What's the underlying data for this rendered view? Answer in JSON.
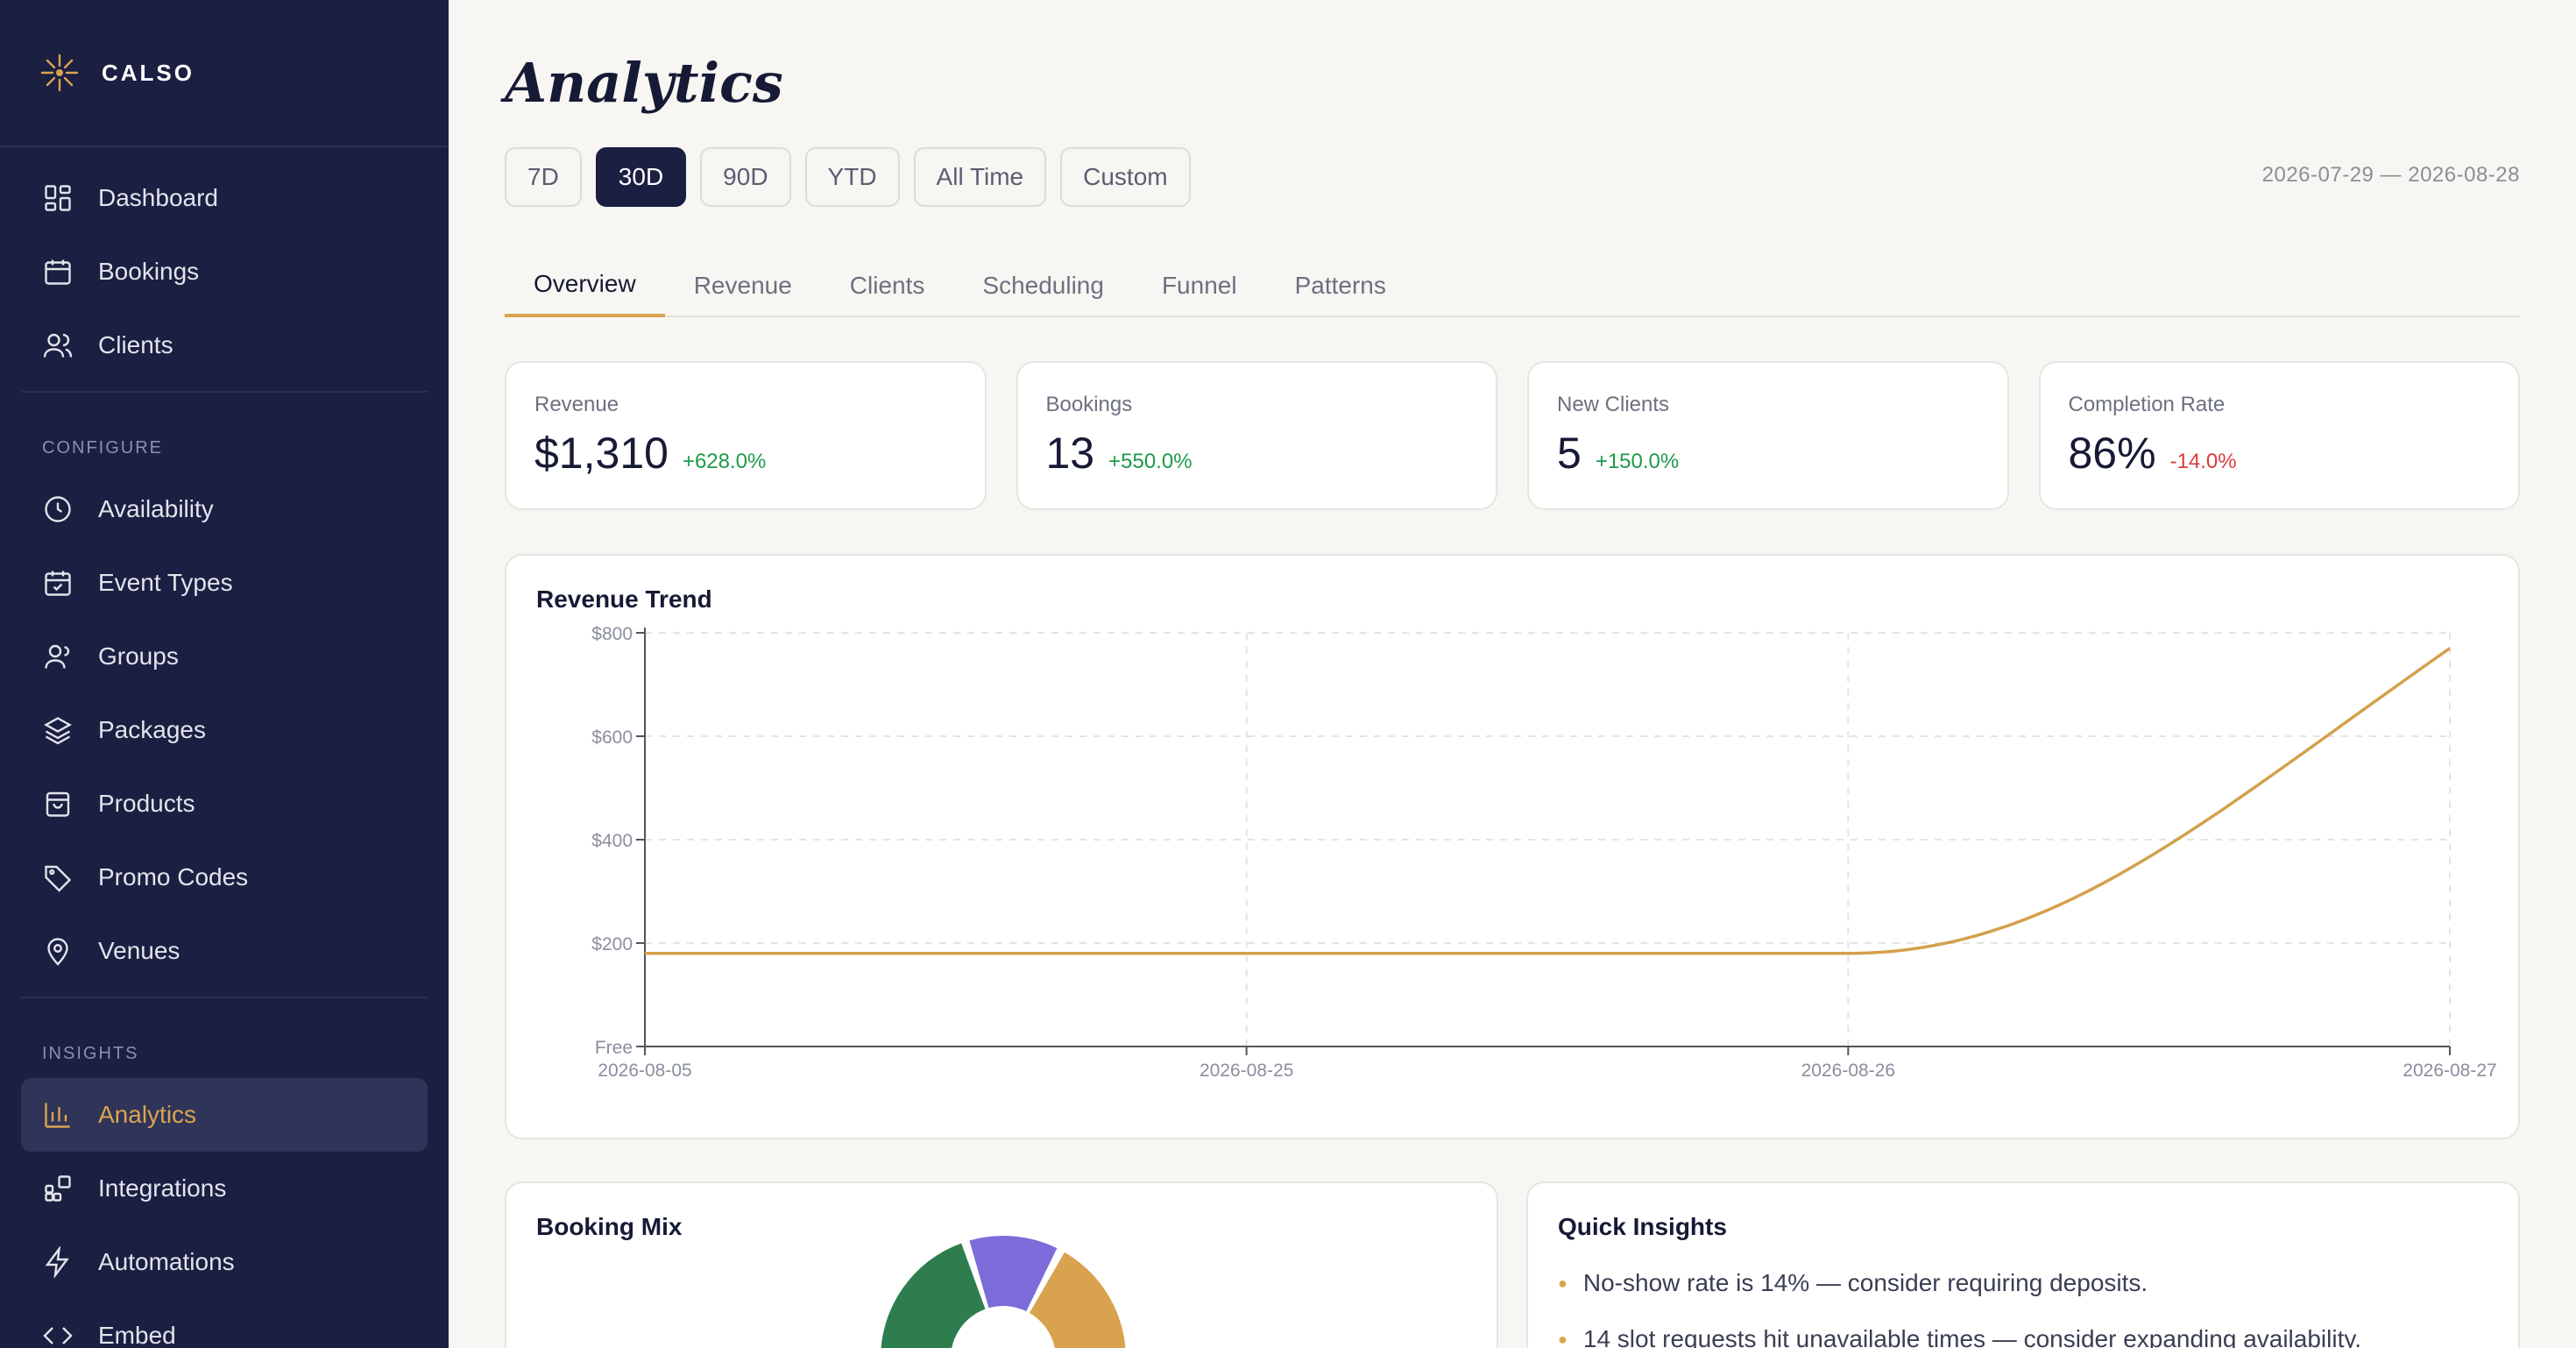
{
  "brand": {
    "name": "CALSO"
  },
  "sidebar": {
    "main_items": [
      {
        "label": "Dashboard",
        "icon": "dashboard-icon"
      },
      {
        "label": "Bookings",
        "icon": "calendar-icon"
      },
      {
        "label": "Clients",
        "icon": "users-icon"
      }
    ],
    "configure_label": "CONFIGURE",
    "configure_items": [
      {
        "label": "Availability",
        "icon": "clock-icon"
      },
      {
        "label": "Event Types",
        "icon": "calendar-check-icon"
      },
      {
        "label": "Groups",
        "icon": "group-icon"
      },
      {
        "label": "Packages",
        "icon": "layers-icon"
      },
      {
        "label": "Products",
        "icon": "bag-icon"
      },
      {
        "label": "Promo Codes",
        "icon": "tag-icon"
      },
      {
        "label": "Venues",
        "icon": "map-pin-icon"
      }
    ],
    "insights_label": "INSIGHTS",
    "insights_items": [
      {
        "label": "Analytics",
        "icon": "bar-chart-icon",
        "active": true
      },
      {
        "label": "Integrations",
        "icon": "integrations-icon"
      },
      {
        "label": "Automations",
        "icon": "bolt-icon"
      },
      {
        "label": "Embed",
        "icon": "code-icon"
      }
    ]
  },
  "page": {
    "title": "Analytics",
    "date_range": "2026-07-29 — 2026-08-28"
  },
  "ranges": [
    {
      "label": "7D"
    },
    {
      "label": "30D",
      "active": true
    },
    {
      "label": "90D"
    },
    {
      "label": "YTD"
    },
    {
      "label": "All Time"
    },
    {
      "label": "Custom"
    }
  ],
  "tabs": [
    {
      "label": "Overview",
      "active": true
    },
    {
      "label": "Revenue"
    },
    {
      "label": "Clients"
    },
    {
      "label": "Scheduling"
    },
    {
      "label": "Funnel"
    },
    {
      "label": "Patterns"
    }
  ],
  "kpis": [
    {
      "label": "Revenue",
      "value": "$1,310",
      "delta": "+628.0%",
      "trend": "pos"
    },
    {
      "label": "Bookings",
      "value": "13",
      "delta": "+550.0%",
      "trend": "pos"
    },
    {
      "label": "New Clients",
      "value": "5",
      "delta": "+150.0%",
      "trend": "pos"
    },
    {
      "label": "Completion Rate",
      "value": "86%",
      "delta": "-14.0%",
      "trend": "neg"
    }
  ],
  "revenue_trend": {
    "title": "Revenue Trend"
  },
  "chart_data": {
    "type": "line",
    "title": "Revenue Trend",
    "x": [
      "2026-08-05",
      "2026-08-25",
      "2026-08-26",
      "2026-08-27"
    ],
    "series": [
      {
        "values": [
          180,
          180,
          180,
          770
        ],
        "color": "#d4a04d"
      }
    ],
    "y_ticks": [
      "Free",
      "$200",
      "$400",
      "$600",
      "$800"
    ],
    "ylim": [
      0,
      800
    ],
    "grid": true
  },
  "booking_mix": {
    "title": "Booking Mix",
    "colors": [
      "#2e7d4f",
      "#7b6cd9",
      "#d8a24f"
    ]
  },
  "quick_insights": {
    "title": "Quick Insights",
    "items": [
      "No-show rate is 14% — consider requiring deposits.",
      "14 slot requests hit unavailable times — consider expanding availability."
    ]
  }
}
